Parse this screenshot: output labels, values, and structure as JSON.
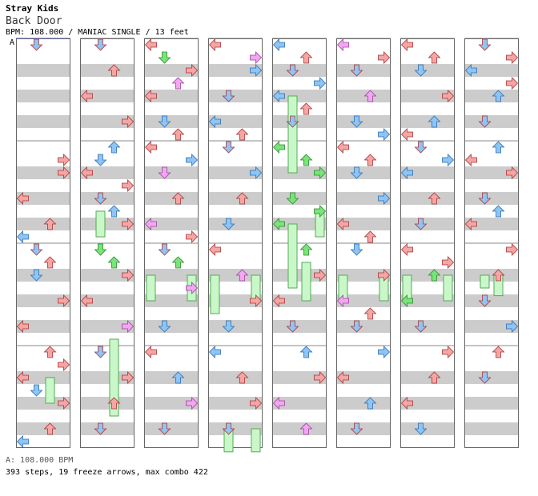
{
  "header": {
    "artist": "Stray Kids",
    "title": "Back Door",
    "info": "BPM: 108.000 / MANIAC SINGLE / 13 feet",
    "bpm_marker": "A"
  },
  "footer": {
    "bpm_legend": "A: 108.000 BPM",
    "stats": "393 steps, 19 freeze arrows, max combo 422"
  },
  "colors": {
    "left": "#f4a6a6",
    "down": "#8fc4f4",
    "up": "#f4a6a6",
    "right": "#f4a6a6",
    "eighth": "#8fc4f4",
    "sixteenth": "#7be37b",
    "other": "#f0a8f0",
    "freeze": "#c9f7c9",
    "stripe": "#cccccc"
  },
  "chart_data": {
    "type": "table",
    "columns": 8,
    "beats_per_column": 16,
    "lanes": [
      "left",
      "down",
      "up",
      "right"
    ],
    "notes": [
      [
        0,
        0.0,
        1,
        "r"
      ],
      [
        0,
        4.5,
        3,
        "r"
      ],
      [
        0,
        5.0,
        3,
        "r"
      ],
      [
        0,
        6.0,
        0,
        "r"
      ],
      [
        0,
        7.0,
        2,
        "r"
      ],
      [
        0,
        7.5,
        0,
        "b"
      ],
      [
        0,
        8.0,
        1,
        "r"
      ],
      [
        0,
        8.5,
        2,
        "r"
      ],
      [
        0,
        9.0,
        1,
        "b"
      ],
      [
        0,
        10.0,
        3,
        "r"
      ],
      [
        0,
        11.0,
        0,
        "r"
      ],
      [
        0,
        12.0,
        2,
        "r"
      ],
      [
        0,
        12.5,
        3,
        "r"
      ],
      [
        0,
        13.0,
        0,
        "r"
      ],
      [
        0,
        13.5,
        1,
        "b"
      ],
      [
        0,
        14.0,
        3,
        "r"
      ],
      [
        0,
        15.0,
        2,
        "r"
      ],
      [
        0,
        15.5,
        0,
        "b"
      ],
      [
        1,
        0.0,
        1,
        "r"
      ],
      [
        1,
        1.0,
        2,
        "r"
      ],
      [
        1,
        2.0,
        0,
        "r"
      ],
      [
        1,
        3.0,
        3,
        "r"
      ],
      [
        1,
        4.0,
        2,
        "b"
      ],
      [
        1,
        4.5,
        1,
        "b"
      ],
      [
        1,
        5.0,
        0,
        "r"
      ],
      [
        1,
        5.5,
        3,
        "r"
      ],
      [
        1,
        6.0,
        1,
        "r"
      ],
      [
        1,
        6.5,
        2,
        "b"
      ],
      [
        1,
        7.0,
        3,
        "r"
      ],
      [
        1,
        8.0,
        1,
        "g"
      ],
      [
        1,
        8.5,
        2,
        "g"
      ],
      [
        1,
        9.0,
        3,
        "r"
      ],
      [
        1,
        10.0,
        0,
        "r"
      ],
      [
        1,
        11.0,
        3,
        "p"
      ],
      [
        1,
        12.0,
        1,
        "r"
      ],
      [
        1,
        13.0,
        3,
        "r"
      ],
      [
        1,
        14.0,
        2,
        "r"
      ],
      [
        1,
        15.0,
        1,
        "r"
      ],
      [
        2,
        0.0,
        0,
        "r"
      ],
      [
        2,
        0.5,
        1,
        "g"
      ],
      [
        2,
        1.0,
        3,
        "r"
      ],
      [
        2,
        1.5,
        2,
        "p"
      ],
      [
        2,
        2.0,
        0,
        "r"
      ],
      [
        2,
        3.0,
        1,
        "b"
      ],
      [
        2,
        3.5,
        2,
        "r"
      ],
      [
        2,
        4.0,
        0,
        "r"
      ],
      [
        2,
        4.5,
        3,
        "b"
      ],
      [
        2,
        5.0,
        1,
        "p"
      ],
      [
        2,
        6.0,
        2,
        "r"
      ],
      [
        2,
        7.0,
        0,
        "p"
      ],
      [
        2,
        7.5,
        3,
        "r"
      ],
      [
        2,
        8.0,
        1,
        "r"
      ],
      [
        2,
        8.5,
        2,
        "g"
      ],
      [
        2,
        9.5,
        3,
        "p"
      ],
      [
        2,
        11.0,
        1,
        "b"
      ],
      [
        2,
        12.0,
        0,
        "r"
      ],
      [
        2,
        13.0,
        2,
        "b"
      ],
      [
        2,
        14.0,
        3,
        "p"
      ],
      [
        2,
        15.0,
        1,
        "r"
      ],
      [
        3,
        0.0,
        0,
        "r"
      ],
      [
        3,
        0.5,
        3,
        "p"
      ],
      [
        3,
        1.0,
        3,
        "b"
      ],
      [
        3,
        2.0,
        1,
        "r"
      ],
      [
        3,
        3.0,
        0,
        "b"
      ],
      [
        3,
        3.5,
        2,
        "r"
      ],
      [
        3,
        4.0,
        1,
        "r"
      ],
      [
        3,
        5.0,
        3,
        "b"
      ],
      [
        3,
        6.0,
        2,
        "r"
      ],
      [
        3,
        7.0,
        1,
        "b"
      ],
      [
        3,
        8.0,
        0,
        "r"
      ],
      [
        3,
        9.0,
        2,
        "p"
      ],
      [
        3,
        10.0,
        3,
        "r"
      ],
      [
        3,
        11.0,
        1,
        "b"
      ],
      [
        3,
        12.0,
        0,
        "b"
      ],
      [
        3,
        13.0,
        2,
        "r"
      ],
      [
        3,
        14.0,
        3,
        "r"
      ],
      [
        3,
        15.0,
        1,
        "r"
      ],
      [
        4,
        0.0,
        0,
        "b"
      ],
      [
        4,
        0.5,
        2,
        "r"
      ],
      [
        4,
        1.0,
        1,
        "r"
      ],
      [
        4,
        1.5,
        3,
        "b"
      ],
      [
        4,
        2.0,
        0,
        "b"
      ],
      [
        4,
        2.5,
        2,
        "r"
      ],
      [
        4,
        3.0,
        1,
        "r"
      ],
      [
        4,
        4.0,
        0,
        "g"
      ],
      [
        4,
        4.5,
        2,
        "g"
      ],
      [
        4,
        5.0,
        3,
        "g"
      ],
      [
        4,
        6.0,
        1,
        "g"
      ],
      [
        4,
        6.5,
        3,
        "g"
      ],
      [
        4,
        7.0,
        0,
        "g"
      ],
      [
        4,
        8.0,
        2,
        "g"
      ],
      [
        4,
        9.0,
        3,
        "r"
      ],
      [
        4,
        10.0,
        0,
        "r"
      ],
      [
        4,
        11.0,
        1,
        "r"
      ],
      [
        4,
        12.0,
        2,
        "b"
      ],
      [
        4,
        13.0,
        3,
        "r"
      ],
      [
        4,
        14.0,
        0,
        "p"
      ],
      [
        4,
        15.0,
        2,
        "p"
      ],
      [
        5,
        0.0,
        0,
        "p"
      ],
      [
        5,
        0.5,
        3,
        "r"
      ],
      [
        5,
        1.0,
        1,
        "r"
      ],
      [
        5,
        2.0,
        2,
        "p"
      ],
      [
        5,
        3.0,
        1,
        "b"
      ],
      [
        5,
        3.5,
        3,
        "b"
      ],
      [
        5,
        4.0,
        0,
        "r"
      ],
      [
        5,
        4.5,
        2,
        "r"
      ],
      [
        5,
        5.0,
        1,
        "b"
      ],
      [
        5,
        6.0,
        3,
        "b"
      ],
      [
        5,
        7.0,
        0,
        "r"
      ],
      [
        5,
        7.5,
        2,
        "r"
      ],
      [
        5,
        8.0,
        1,
        "b"
      ],
      [
        5,
        9.0,
        3,
        "r"
      ],
      [
        5,
        10.0,
        0,
        "p"
      ],
      [
        5,
        10.5,
        2,
        "r"
      ],
      [
        5,
        11.0,
        1,
        "r"
      ],
      [
        5,
        12.0,
        3,
        "b"
      ],
      [
        5,
        13.0,
        0,
        "r"
      ],
      [
        5,
        14.0,
        2,
        "b"
      ],
      [
        5,
        15.0,
        1,
        "r"
      ],
      [
        6,
        0.0,
        0,
        "r"
      ],
      [
        6,
        0.5,
        2,
        "r"
      ],
      [
        6,
        1.0,
        1,
        "b"
      ],
      [
        6,
        2.0,
        3,
        "r"
      ],
      [
        6,
        3.0,
        2,
        "b"
      ],
      [
        6,
        3.5,
        0,
        "r"
      ],
      [
        6,
        4.0,
        1,
        "r"
      ],
      [
        6,
        4.5,
        3,
        "b"
      ],
      [
        6,
        5.0,
        0,
        "b"
      ],
      [
        6,
        6.0,
        2,
        "r"
      ],
      [
        6,
        7.0,
        1,
        "r"
      ],
      [
        6,
        8.0,
        0,
        "r"
      ],
      [
        6,
        8.5,
        3,
        "r"
      ],
      [
        6,
        9.0,
        2,
        "g"
      ],
      [
        6,
        10.0,
        0,
        "g"
      ],
      [
        6,
        11.0,
        1,
        "r"
      ],
      [
        6,
        12.0,
        3,
        "r"
      ],
      [
        6,
        13.0,
        2,
        "r"
      ],
      [
        6,
        14.0,
        0,
        "r"
      ],
      [
        6,
        15.0,
        1,
        "b"
      ],
      [
        7,
        0.0,
        1,
        "r"
      ],
      [
        7,
        0.5,
        3,
        "r"
      ],
      [
        7,
        1.0,
        0,
        "b"
      ],
      [
        7,
        1.5,
        3,
        "r"
      ],
      [
        7,
        2.0,
        2,
        "b"
      ],
      [
        7,
        3.0,
        1,
        "r"
      ],
      [
        7,
        4.0,
        2,
        "b"
      ],
      [
        7,
        4.5,
        0,
        "r"
      ],
      [
        7,
        5.0,
        3,
        "r"
      ],
      [
        7,
        6.0,
        1,
        "r"
      ],
      [
        7,
        6.5,
        2,
        "b"
      ],
      [
        7,
        7.0,
        0,
        "r"
      ],
      [
        7,
        8.0,
        3,
        "r"
      ],
      [
        7,
        9.0,
        2,
        "r"
      ],
      [
        7,
        10.0,
        1,
        "r"
      ],
      [
        7,
        11.0,
        3,
        "b"
      ],
      [
        7,
        12.0,
        2,
        "r"
      ],
      [
        7,
        13.0,
        1,
        "r"
      ]
    ],
    "freezes": [
      [
        1,
        11.5,
        14.5,
        2
      ],
      [
        2,
        9.0,
        10.0,
        0
      ],
      [
        2,
        9.0,
        10.0,
        3
      ],
      [
        3,
        9.0,
        10.5,
        0
      ],
      [
        3,
        9.0,
        10.0,
        3
      ],
      [
        4,
        2.0,
        5.0,
        1
      ],
      [
        4,
        7.0,
        9.5,
        1
      ],
      [
        4,
        8.5,
        10.0,
        2
      ],
      [
        5,
        9.0,
        10.0,
        0
      ],
      [
        5,
        9.0,
        10.0,
        3
      ],
      [
        6,
        9.0,
        10.0,
        0
      ],
      [
        6,
        9.0,
        10.0,
        3
      ],
      [
        7,
        9.0,
        9.5,
        1
      ],
      [
        7,
        9.0,
        9.8,
        2
      ],
      [
        3,
        15.0,
        15.9,
        1
      ],
      [
        3,
        15.0,
        15.9,
        3
      ],
      [
        0,
        13.0,
        14.0,
        2
      ],
      [
        1,
        6.5,
        7.5,
        1
      ],
      [
        4,
        6.5,
        7.5,
        3
      ]
    ]
  }
}
